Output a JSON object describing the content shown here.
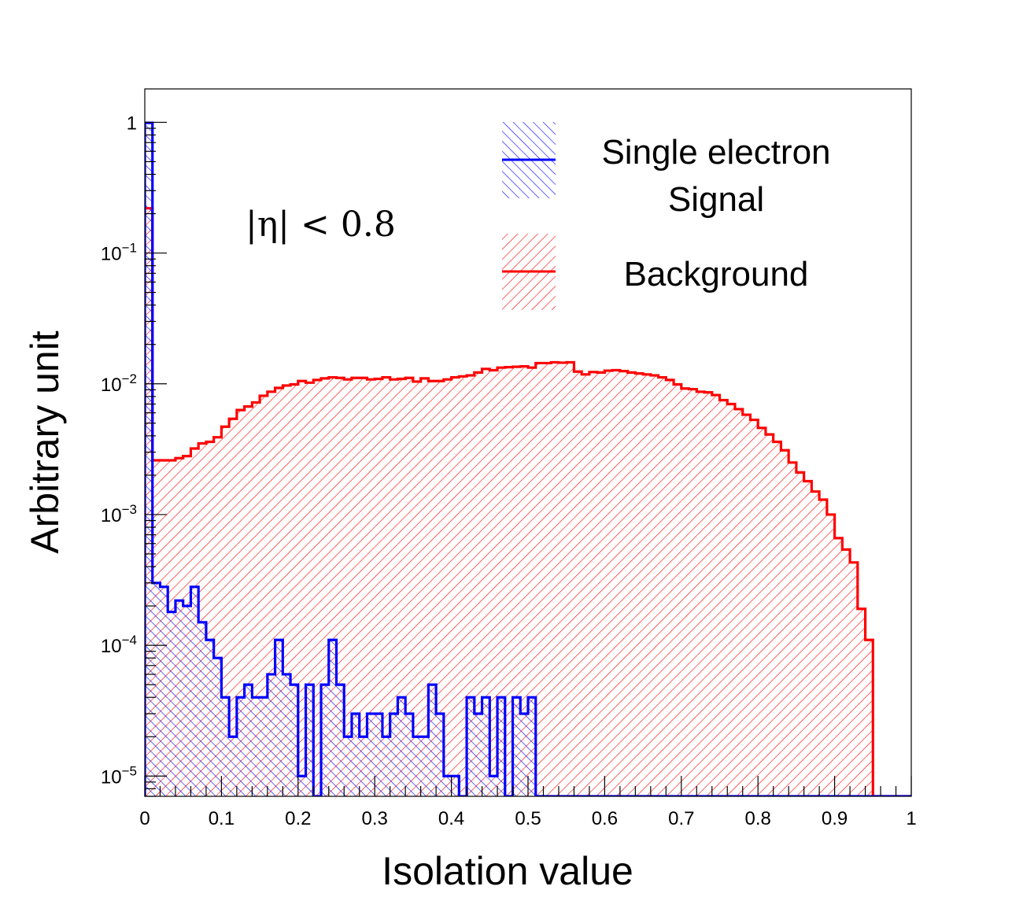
{
  "chart_data": {
    "type": "histogram",
    "title": "",
    "xlabel": "Isolation value",
    "ylabel": "Arbitrary unit",
    "xlim": [
      0,
      1
    ],
    "ylim": [
      7e-06,
      1.8
    ],
    "yscale": "log",
    "bins": 100,
    "x_ticks": [
      "0",
      "0.1",
      "0.2",
      "0.3",
      "0.4",
      "0.5",
      "0.6",
      "0.7",
      "0.8",
      "0.9",
      "1"
    ],
    "y_ticks": [
      {
        "base": "1",
        "exp": ""
      },
      {
        "base": "10",
        "exp": "−1"
      },
      {
        "base": "10",
        "exp": "−2"
      },
      {
        "base": "10",
        "exp": "−3"
      },
      {
        "base": "10",
        "exp": "−4"
      },
      {
        "base": "10",
        "exp": "−5"
      }
    ],
    "annotation": "|η| < 0.8",
    "legend": {
      "signal_line1": "Single electron",
      "signal_line2": "Signal",
      "background": "Background"
    },
    "series": [
      {
        "name": "Single electron Signal",
        "color": "#0000ff",
        "values": [
          0.99,
          0.0003,
          0.00028,
          0.00018,
          0.00022,
          0.0002,
          0.00028,
          0.00015,
          0.00011,
          8e-05,
          4e-05,
          2e-05,
          4e-05,
          5e-05,
          4e-05,
          4e-05,
          6e-05,
          0.00011,
          6e-05,
          5e-05,
          1e-05,
          5e-05,
          0.0,
          5e-05,
          0.00011,
          5e-05,
          2e-05,
          3e-05,
          2e-05,
          3e-05,
          3e-05,
          2e-05,
          3e-05,
          4e-05,
          3e-05,
          2e-05,
          2e-05,
          5e-05,
          3e-05,
          1e-05,
          1e-05,
          0.0,
          4e-05,
          3e-05,
          4e-05,
          1e-05,
          4e-05,
          0.0,
          4e-05,
          3e-05,
          4e-05,
          0.0,
          0.0,
          0.0,
          0.0,
          0.0,
          0.0,
          0.0,
          0.0,
          0.0,
          0.0,
          0.0,
          0.0,
          0.0,
          0.0,
          0.0,
          0.0,
          0.0,
          0.0,
          0.0,
          0.0,
          0.0,
          0.0,
          0.0,
          0.0,
          0.0,
          0.0,
          0.0,
          0.0,
          0.0,
          0.0,
          0.0,
          0.0,
          0.0,
          0.0,
          0.0,
          0.0,
          0.0,
          0.0,
          0.0,
          0.0,
          0.0,
          0.0,
          0.0,
          0.0,
          0.0,
          0.0,
          0.0,
          0.0,
          0.0
        ]
      },
      {
        "name": "Background",
        "color": "#ff0000",
        "values": [
          0.22,
          0.0026,
          0.0026,
          0.0026,
          0.0027,
          0.0028,
          0.0032,
          0.0035,
          0.0036,
          0.0039,
          0.0047,
          0.0054,
          0.0063,
          0.0067,
          0.0072,
          0.0081,
          0.0087,
          0.0093,
          0.0097,
          0.0099,
          0.0105,
          0.0102,
          0.0107,
          0.011,
          0.0112,
          0.0111,
          0.0108,
          0.0111,
          0.0111,
          0.0108,
          0.0109,
          0.0112,
          0.0108,
          0.0109,
          0.0111,
          0.0104,
          0.011,
          0.0105,
          0.0105,
          0.0108,
          0.0112,
          0.0114,
          0.0116,
          0.0122,
          0.013,
          0.0127,
          0.0133,
          0.0134,
          0.0135,
          0.0136,
          0.0133,
          0.0144,
          0.0144,
          0.0146,
          0.0145,
          0.0146,
          0.0124,
          0.0118,
          0.0123,
          0.0122,
          0.0126,
          0.0127,
          0.0125,
          0.0122,
          0.012,
          0.0118,
          0.0116,
          0.0112,
          0.0107,
          0.0099,
          0.0092,
          0.0091,
          0.0087,
          0.0086,
          0.0082,
          0.0075,
          0.007,
          0.0064,
          0.0058,
          0.0053,
          0.0046,
          0.0041,
          0.0036,
          0.0031,
          0.0025,
          0.0021,
          0.0018,
          0.0015,
          0.0013,
          0.001,
          0.00066,
          0.00054,
          0.00043,
          0.00019,
          0.00011,
          0.0,
          0.0,
          0.0,
          0.0,
          0.0
        ]
      }
    ]
  }
}
